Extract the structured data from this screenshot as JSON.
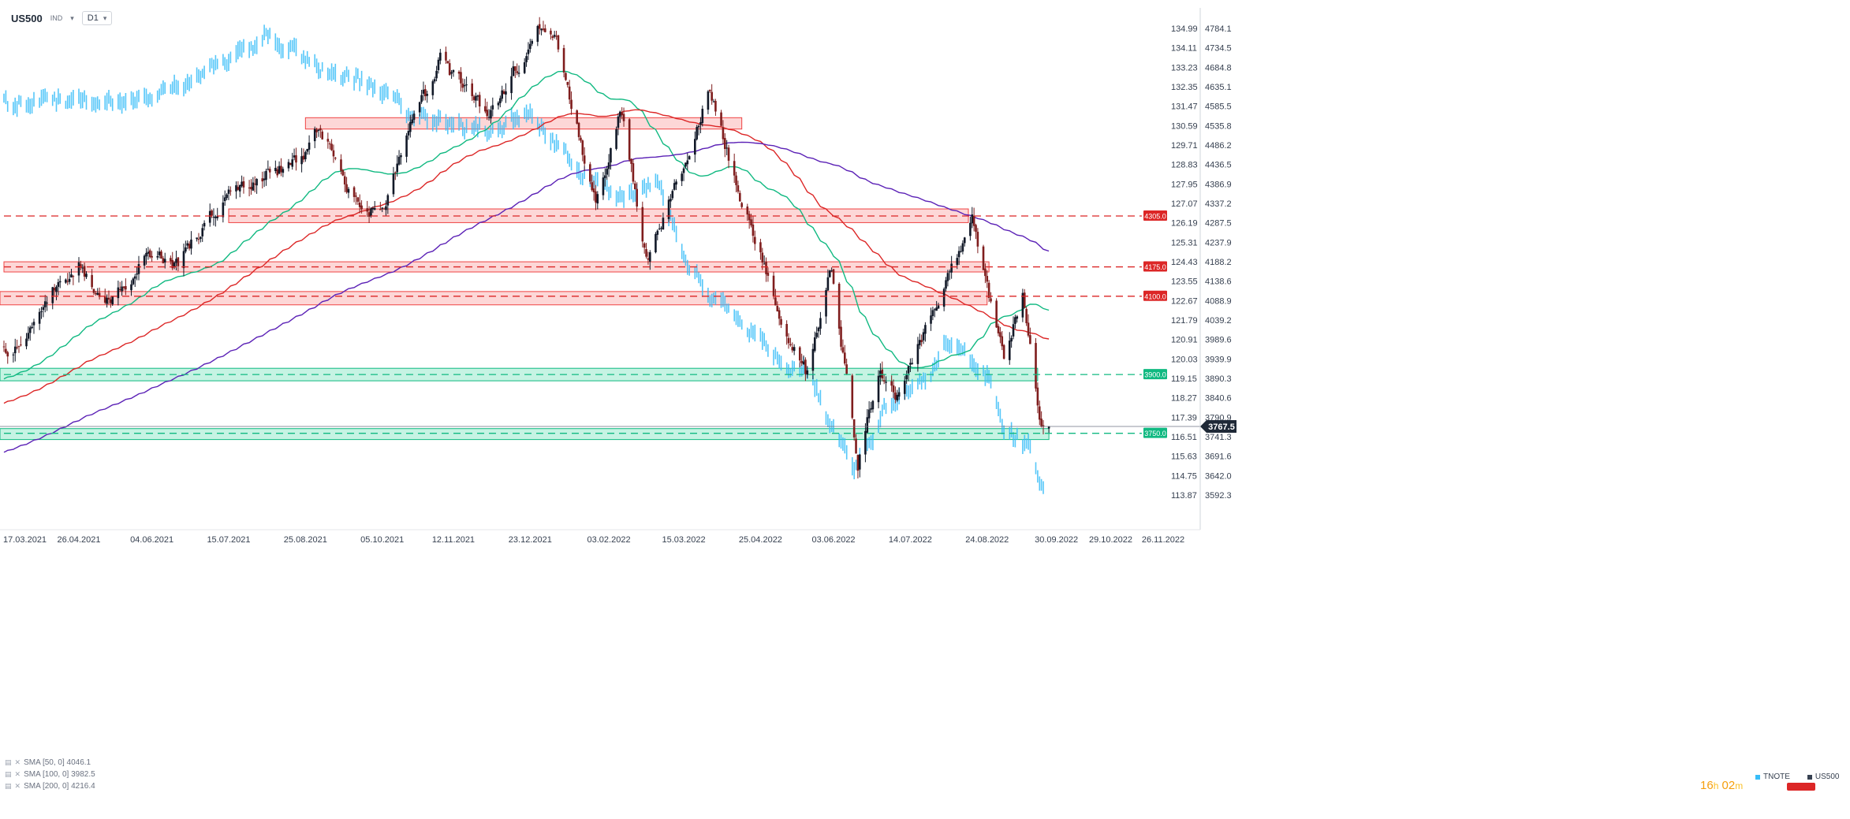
{
  "header": {
    "symbol": "US500",
    "symbol_sub": "IND",
    "timeframe": "D1"
  },
  "indicators": [
    {
      "label": "SMA [50, 0] 4046.1",
      "color": "#10b981"
    },
    {
      "label": "SMA [100, 0] 3982.5",
      "color": "#dc2626"
    },
    {
      "label": "SMA [200, 0] 4216.4",
      "color": "#5b21b6"
    }
  ],
  "countdown": {
    "hours": "16",
    "h_unit": "h",
    "minutes": "02",
    "m_unit": "m"
  },
  "legend": {
    "secondary": "TNOTE",
    "primary": "US500"
  },
  "colors": {
    "up": "#111827",
    "down": "#7f1d1d",
    "tnote": "#38bdf8",
    "resistance": "#dc2626",
    "support": "#10b981"
  },
  "chart_data": {
    "type": "candlestick",
    "x_ticks": [
      "17.03.2021",
      "26.04.2021",
      "04.06.2021",
      "15.07.2021",
      "25.08.2021",
      "05.10.2021",
      "12.11.2021",
      "23.12.2021",
      "03.02.2022",
      "15.03.2022",
      "25.04.2022",
      "03.06.2022",
      "14.07.2022",
      "24.08.2022",
      "30.09.2022",
      "29.10.2022",
      "26.11.2022"
    ],
    "y_right": {
      "ticks": [
        4784.1,
        4734.5,
        4684.8,
        4635.1,
        4585.5,
        4535.8,
        4486.2,
        4436.5,
        4386.9,
        4337.2,
        4287.5,
        4237.9,
        4188.2,
        4138.6,
        4088.9,
        4039.2,
        3989.6,
        3939.9,
        3890.3,
        3840.6,
        3790.9,
        3741.3,
        3691.6,
        3642.0,
        3592.3
      ]
    },
    "y_left": {
      "ticks": [
        134.99,
        134.11,
        133.23,
        132.35,
        131.47,
        130.59,
        129.71,
        128.83,
        127.95,
        127.07,
        126.19,
        125.31,
        124.43,
        123.55,
        122.67,
        121.79,
        120.91,
        120.03,
        119.15,
        118.27,
        117.39,
        116.51,
        115.63,
        114.75,
        113.87
      ]
    },
    "current_price": "3767.5",
    "levels": [
      {
        "value": 4305.0,
        "label": "4305.0",
        "kind": "resistance"
      },
      {
        "value": 4175.0,
        "label": "4175.0",
        "kind": "resistance"
      },
      {
        "value": 4100.0,
        "label": "4100.0",
        "kind": "resistance"
      },
      {
        "value": 3900.0,
        "label": "3900.0",
        "kind": "support"
      },
      {
        "value": 3750.0,
        "label": "3750.0",
        "kind": "support"
      }
    ],
    "zones": [
      {
        "from": "25.08.2021",
        "to": "15.04.2022",
        "low": 4527,
        "high": 4556,
        "kind": "resistance"
      },
      {
        "from": "15.07.2021",
        "to": "14.08.2022",
        "low": 4288,
        "high": 4323,
        "kind": "resistance"
      },
      {
        "from": "17.03.2021",
        "to": "25.08.2022",
        "low": 4162,
        "high": 4188,
        "kind": "resistance"
      },
      {
        "from": "10.03.2021",
        "to": "24.08.2022",
        "low": 4078,
        "high": 4112,
        "kind": "resistance"
      },
      {
        "from": "10.03.2021",
        "to": "20.09.2022",
        "low": 3884,
        "high": 3916,
        "kind": "support"
      },
      {
        "from": "08.03.2021",
        "to": "26.09.2022",
        "low": 3734,
        "high": 3762,
        "kind": "support"
      }
    ],
    "anchors": [
      [
        "17.03.2021",
        3960
      ],
      [
        "01.04.2021",
        4000
      ],
      [
        "14.04.2021",
        4120
      ],
      [
        "26.04.2021",
        4180
      ],
      [
        "12.05.2021",
        4080
      ],
      [
        "04.06.2021",
        4220
      ],
      [
        "18.06.2021",
        4180
      ],
      [
        "15.07.2021",
        4370
      ],
      [
        "20.08.2021",
        4440
      ],
      [
        "02.09.2021",
        4530
      ],
      [
        "20.09.2021",
        4350
      ],
      [
        "04.10.2021",
        4300
      ],
      [
        "20.10.2021",
        4520
      ],
      [
        "05.11.2021",
        4700
      ],
      [
        "30.11.2021",
        4560
      ],
      [
        "29.12.2021",
        4790
      ],
      [
        "05.01.2022",
        4780
      ],
      [
        "27.01.2022",
        4330
      ],
      [
        "09.02.2022",
        4580
      ],
      [
        "24.02.2022",
        4180
      ],
      [
        "29.03.2022",
        4630
      ],
      [
        "12.04.2022",
        4390
      ],
      [
        "09.05.2022",
        4000
      ],
      [
        "20.05.2022",
        3900
      ],
      [
        "02.06.2022",
        4170
      ],
      [
        "16.06.2022",
        3670
      ],
      [
        "27.06.2022",
        3900
      ],
      [
        "07.07.2022",
        3850
      ],
      [
        "16.08.2022",
        4300
      ],
      [
        "02.09.2022",
        3930
      ],
      [
        "12.09.2022",
        4110
      ],
      [
        "21.09.2022",
        3790
      ],
      [
        "26.09.2022",
        3767.5
      ]
    ]
  }
}
